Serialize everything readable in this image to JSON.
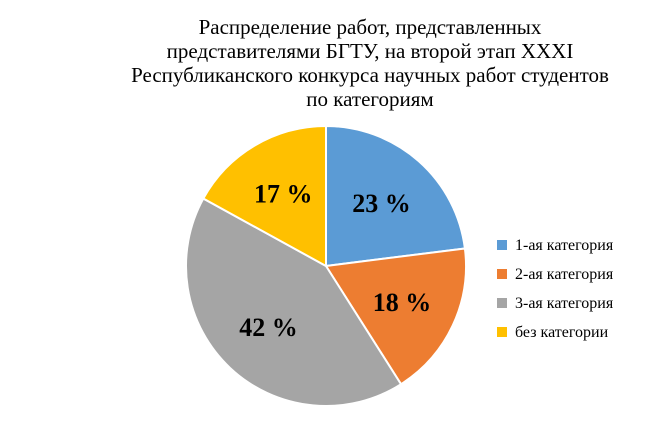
{
  "chart_data": {
    "type": "pie",
    "title_lines": [
      "Распределение работ, представленных",
      "представителями БГТУ, на второй этап XXXI",
      "Республиканского конкурса научных работ студентов",
      "по категориям"
    ],
    "slices": [
      {
        "label": "1-ая категория",
        "value": 23,
        "display": "23 %",
        "color": "#5B9BD5"
      },
      {
        "label": "2-ая категория",
        "value": 18,
        "display": "18 %",
        "color": "#ED7D31"
      },
      {
        "label": "3-ая категория",
        "value": 42,
        "display": "42 %",
        "color": "#A5A5A5"
      },
      {
        "label": "без категории",
        "value": 17,
        "display": "17 %",
        "color": "#FFC000"
      }
    ],
    "legend_position": "right",
    "start_angle": "12 o'clock",
    "direction": "clockwise"
  }
}
